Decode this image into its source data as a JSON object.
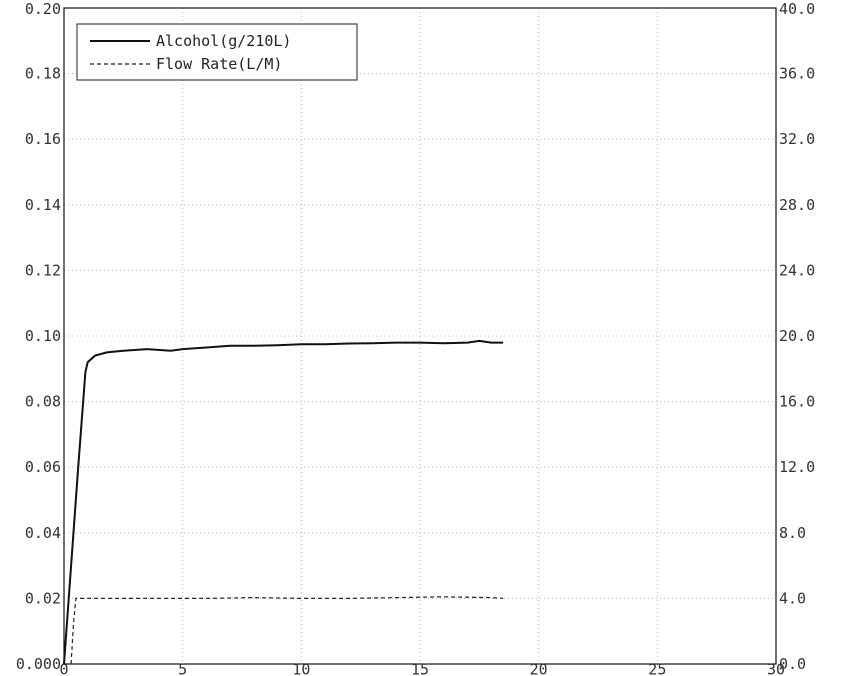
{
  "chart_data": {
    "type": "line",
    "title": "",
    "xlabel": "",
    "ylabel": "",
    "y2label": "",
    "xlim": [
      0,
      30
    ],
    "ylim": [
      0,
      0.2
    ],
    "y2lim": [
      0,
      40
    ],
    "x_ticks": [
      "0",
      "5",
      "10",
      "15",
      "20",
      "25",
      "30"
    ],
    "y_ticks": [
      "0.000",
      "0.02",
      "0.04",
      "0.06",
      "0.08",
      "0.10",
      "0.12",
      "0.14",
      "0.16",
      "0.18",
      "0.20"
    ],
    "y2_ticks": [
      "0.0",
      "4.0",
      "8.0",
      "12.0",
      "16.0",
      "20.0",
      "24.0",
      "28.0",
      "32.0",
      "36.0",
      "40.0"
    ],
    "grid": true,
    "legend_position": "top-left",
    "series": [
      {
        "name": "Alcohol(g/210L)",
        "axis": "left",
        "style": "solid",
        "color": "#111111",
        "x": [
          0,
          0.3,
          0.6,
          0.9,
          1.0,
          1.3,
          1.8,
          2.5,
          3.5,
          4.5,
          5.0,
          6.0,
          7.0,
          8.0,
          9.0,
          10.0,
          11.0,
          12.0,
          13.0,
          14.0,
          15.0,
          16.0,
          17.0,
          17.5,
          18.0,
          18.5
        ],
        "y": [
          0,
          0.03,
          0.06,
          0.089,
          0.092,
          0.094,
          0.095,
          0.0955,
          0.096,
          0.0955,
          0.096,
          0.0965,
          0.097,
          0.097,
          0.0972,
          0.0975,
          0.0975,
          0.0977,
          0.0978,
          0.098,
          0.098,
          0.0978,
          0.098,
          0.0985,
          0.098,
          0.098
        ]
      },
      {
        "name": "Flow Rate(L/M)",
        "axis": "right",
        "style": "dashed",
        "color": "#222222",
        "x": [
          0.3,
          0.4,
          0.5,
          1,
          2,
          4,
          6,
          8,
          10,
          12,
          14,
          16,
          18,
          18.5
        ],
        "y": [
          0,
          2.5,
          4.0,
          4.0,
          4.0,
          4.0,
          4.0,
          4.05,
          4.0,
          4.0,
          4.05,
          4.1,
          4.05,
          4.0
        ]
      }
    ]
  }
}
